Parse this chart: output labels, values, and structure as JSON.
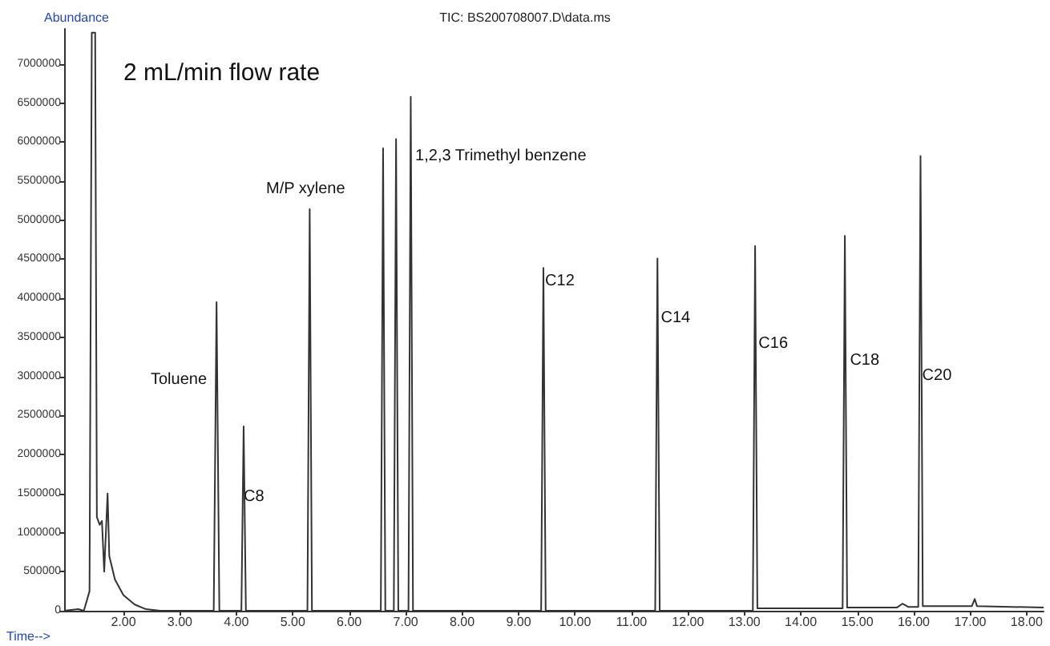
{
  "chart_data": {
    "type": "line",
    "title": "TIC: BS200708007.D\\data.ms",
    "xlabel": "Time-->",
    "ylabel": "Abundance",
    "annotations": [
      "2 mL/min flow rate",
      "Toluene",
      {
        "text": "C8",
        "x": 4.13,
        "y": 1460000
      },
      "M/P xylene",
      {
        "text": "1,2,3 Trimethyl benzene",
        "x": 7.17,
        "y": 5820000
      },
      {
        "text": "C12",
        "x": 9.47,
        "y": 4220000
      },
      {
        "text": "C14",
        "x": 11.52,
        "y": 3750000
      },
      {
        "text": "C16",
        "x": 13.25,
        "y": 3420000
      },
      {
        "text": "C18",
        "x": 14.87,
        "y": 3200000
      },
      {
        "text": "C20",
        "x": 16.15,
        "y": 3010000
      }
    ],
    "series": [
      {
        "color": "#333333",
        "x": [
          0.95,
          1.2,
          1.3,
          1.4,
          1.44,
          1.5,
          1.53,
          1.58,
          1.62,
          1.66,
          1.72,
          1.75,
          1.85,
          2.0,
          2.2,
          2.4,
          2.65,
          3.6,
          3.65,
          3.7,
          4.09,
          4.13,
          4.17,
          5.26,
          5.3,
          5.34,
          6.56,
          6.6,
          6.64,
          6.79,
          6.83,
          6.87,
          7.05,
          7.09,
          7.13,
          9.4,
          9.44,
          9.48,
          11.42,
          11.46,
          11.5,
          13.15,
          13.19,
          13.23,
          14.74,
          14.78,
          14.82,
          15.7,
          15.8,
          15.9,
          16.08,
          16.12,
          16.16,
          17.03,
          17.08,
          17.12,
          18.3
        ],
        "values": [
          0,
          20000,
          0,
          250000,
          7400000,
          7400000,
          1200000,
          1100000,
          1150000,
          500000,
          1500000,
          700000,
          400000,
          200000,
          80000,
          20000,
          0,
          0,
          3950000,
          0,
          0,
          2360000,
          0,
          0,
          5140000,
          0,
          0,
          5920000,
          0,
          0,
          6040000,
          0,
          0,
          6580000,
          0,
          0,
          4390000,
          0,
          0,
          4510000,
          0,
          0,
          4670000,
          30000,
          30000,
          4800000,
          40000,
          40000,
          90000,
          50000,
          50000,
          5820000,
          60000,
          60000,
          150000,
          60000,
          40000
        ]
      }
    ],
    "xlim": [
      0.95,
      18.3
    ],
    "xticks": [
      {
        "value": 2,
        "label": "2.00"
      },
      {
        "value": 3,
        "label": "3.00"
      },
      {
        "value": 4,
        "label": "4.00"
      },
      {
        "value": 5,
        "label": "5.00"
      },
      {
        "value": 6,
        "label": "6.00"
      },
      {
        "value": 7,
        "label": "7.00"
      },
      {
        "value": 8,
        "label": "8.00"
      },
      {
        "value": 9,
        "label": "9.00"
      },
      {
        "value": 10,
        "label": "10.00"
      },
      {
        "value": 11,
        "label": "11.00"
      },
      {
        "value": 12,
        "label": "12.00"
      },
      {
        "value": 13,
        "label": "13.00"
      },
      {
        "value": 14,
        "label": "14.00"
      },
      {
        "value": 15,
        "label": "15.00"
      },
      {
        "value": 16,
        "label": "16.00"
      },
      {
        "value": 17,
        "label": "17.00"
      },
      {
        "value": 18,
        "label": "18.00"
      }
    ],
    "ylim": [
      0,
      7450000
    ],
    "yticks": [
      0,
      500000,
      1000000,
      1500000,
      2000000,
      2500000,
      3000000,
      3500000,
      4000000,
      4500000,
      5000000,
      5500000,
      6000000,
      6500000,
      7000000
    ],
    "grid": false,
    "marker": "none",
    "line_style": "solid"
  }
}
